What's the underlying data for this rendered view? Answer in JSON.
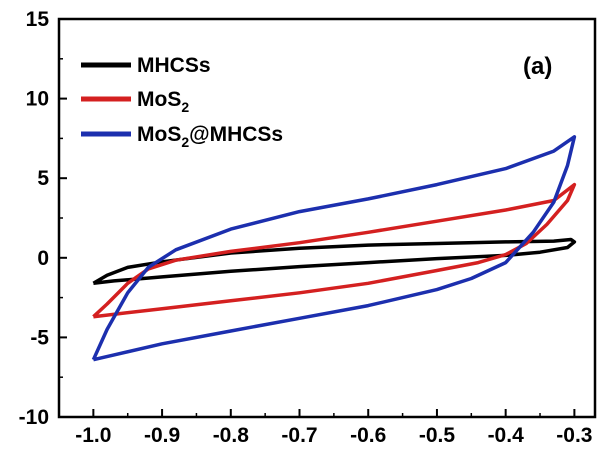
{
  "chart_data": {
    "type": "line",
    "panel_label": "(a)",
    "xlim": [
      -1.05,
      -0.27
    ],
    "ylim": [
      -10,
      15
    ],
    "x_ticks": [
      -1.0,
      -0.9,
      -0.8,
      -0.7,
      -0.6,
      -0.5,
      -0.4,
      -0.3
    ],
    "x_tick_labels": [
      "-1.0",
      "-0.9",
      "-0.8",
      "-0.7",
      "-0.6",
      "-0.5",
      "-0.4",
      "-0.3"
    ],
    "y_ticks": [
      -10,
      -5,
      0,
      5,
      10,
      15
    ],
    "y_tick_labels": [
      "-10",
      "-5",
      "0",
      "5",
      "10",
      "15"
    ],
    "grid": false,
    "legend_position": "top-left",
    "series": [
      {
        "name": "MHCSs",
        "legend_label": [
          "MHCSs"
        ],
        "color": "#000000",
        "points": [
          [
            -1.0,
            -1.6
          ],
          [
            -0.98,
            -1.1
          ],
          [
            -0.95,
            -0.6
          ],
          [
            -0.9,
            -0.25
          ],
          [
            -0.8,
            0.3
          ],
          [
            -0.7,
            0.6
          ],
          [
            -0.6,
            0.8
          ],
          [
            -0.5,
            0.9
          ],
          [
            -0.4,
            1.0
          ],
          [
            -0.33,
            1.05
          ],
          [
            -0.305,
            1.15
          ],
          [
            -0.3,
            1.0
          ],
          [
            -0.31,
            0.65
          ],
          [
            -0.35,
            0.35
          ],
          [
            -0.4,
            0.15
          ],
          [
            -0.5,
            -0.05
          ],
          [
            -0.6,
            -0.3
          ],
          [
            -0.7,
            -0.55
          ],
          [
            -0.8,
            -0.85
          ],
          [
            -0.9,
            -1.2
          ],
          [
            -0.97,
            -1.45
          ],
          [
            -1.0,
            -1.6
          ]
        ]
      },
      {
        "name": "MoS2",
        "legend_label": [
          "MoS",
          "2",
          ""
        ],
        "color": "#d42020",
        "points": [
          [
            -1.0,
            -3.7
          ],
          [
            -0.98,
            -2.9
          ],
          [
            -0.95,
            -1.6
          ],
          [
            -0.92,
            -0.7
          ],
          [
            -0.88,
            -0.15
          ],
          [
            -0.8,
            0.4
          ],
          [
            -0.7,
            0.95
          ],
          [
            -0.6,
            1.6
          ],
          [
            -0.5,
            2.3
          ],
          [
            -0.4,
            3.0
          ],
          [
            -0.33,
            3.6
          ],
          [
            -0.3,
            4.6
          ],
          [
            -0.31,
            3.6
          ],
          [
            -0.34,
            2.1
          ],
          [
            -0.37,
            0.9
          ],
          [
            -0.4,
            0.2
          ],
          [
            -0.44,
            -0.3
          ],
          [
            -0.5,
            -0.8
          ],
          [
            -0.6,
            -1.6
          ],
          [
            -0.7,
            -2.2
          ],
          [
            -0.8,
            -2.7
          ],
          [
            -0.9,
            -3.2
          ],
          [
            -1.0,
            -3.7
          ]
        ]
      },
      {
        "name": "MoS2@MHCSs",
        "legend_label": [
          "MoS",
          "2",
          "@MHCSs"
        ],
        "color": "#1c2fae",
        "points": [
          [
            -1.0,
            -6.4
          ],
          [
            -0.98,
            -4.5
          ],
          [
            -0.95,
            -2.2
          ],
          [
            -0.92,
            -0.6
          ],
          [
            -0.88,
            0.5
          ],
          [
            -0.8,
            1.8
          ],
          [
            -0.7,
            2.9
          ],
          [
            -0.6,
            3.7
          ],
          [
            -0.5,
            4.6
          ],
          [
            -0.4,
            5.6
          ],
          [
            -0.33,
            6.7
          ],
          [
            -0.3,
            7.6
          ],
          [
            -0.31,
            5.8
          ],
          [
            -0.33,
            3.5
          ],
          [
            -0.36,
            1.6
          ],
          [
            -0.4,
            -0.3
          ],
          [
            -0.45,
            -1.3
          ],
          [
            -0.5,
            -2.0
          ],
          [
            -0.6,
            -3.0
          ],
          [
            -0.7,
            -3.8
          ],
          [
            -0.8,
            -4.6
          ],
          [
            -0.9,
            -5.4
          ],
          [
            -0.97,
            -6.1
          ],
          [
            -1.0,
            -6.4
          ]
        ]
      }
    ]
  }
}
